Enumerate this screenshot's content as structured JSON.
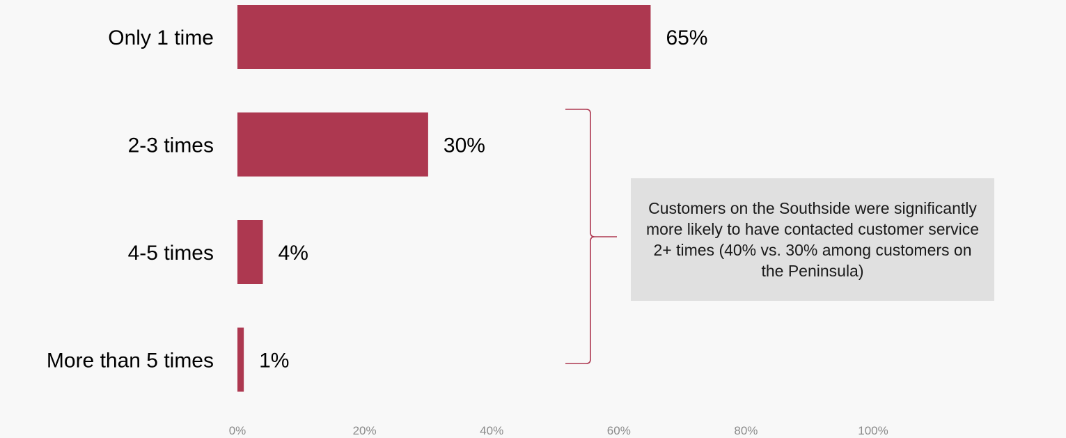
{
  "chart_data": {
    "type": "bar",
    "orientation": "horizontal",
    "categories": [
      "Only 1 time",
      "2-3 times",
      "4-5 times",
      "More than 5 times"
    ],
    "values": [
      65,
      30,
      4,
      1
    ],
    "value_labels": [
      "65%",
      "30%",
      "4%",
      "1%"
    ],
    "xlim": [
      0,
      100
    ],
    "x_ticks": [
      "0%",
      "20%",
      "40%",
      "60%",
      "80%",
      "100%"
    ],
    "grid": false,
    "title": "",
    "xlabel": "",
    "ylabel": "",
    "bar_color": "#ad3850",
    "annotation": {
      "text": "Customers on the Southside were significantly more likely to have contacted customer service 2+ times (40% vs. 30% among customers on the Peninsula)",
      "spans_categories": [
        "2-3 times",
        "4-5 times",
        "More than 5 times"
      ]
    }
  }
}
